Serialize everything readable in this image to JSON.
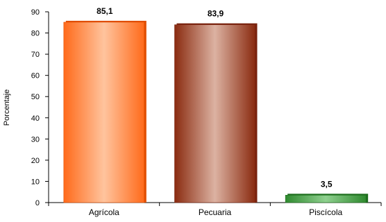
{
  "chart_data": {
    "type": "bar",
    "title": "",
    "xlabel": "",
    "ylabel": "Porcentaje",
    "categories": [
      "Agrícola",
      "Pecuaria",
      "Piscícola"
    ],
    "values": [
      85.1,
      83.9,
      3.5
    ],
    "data_labels": [
      "85,1",
      "83,9",
      "3,5"
    ],
    "ylim": [
      0,
      90
    ],
    "yticks": [
      0,
      10,
      20,
      30,
      40,
      50,
      60,
      70,
      80,
      90
    ],
    "grid": false,
    "legend": "none",
    "bar_colors": [
      {
        "edge": "#ff6a1a",
        "center": "#ffc49e",
        "outline": "#e04e00"
      },
      {
        "edge": "#8a2b10",
        "center": "#dcb2a2",
        "outline": "#7a2410"
      },
      {
        "edge": "#2f8a2f",
        "center": "#8fd08f",
        "outline": "#1f6f1f"
      }
    ]
  }
}
